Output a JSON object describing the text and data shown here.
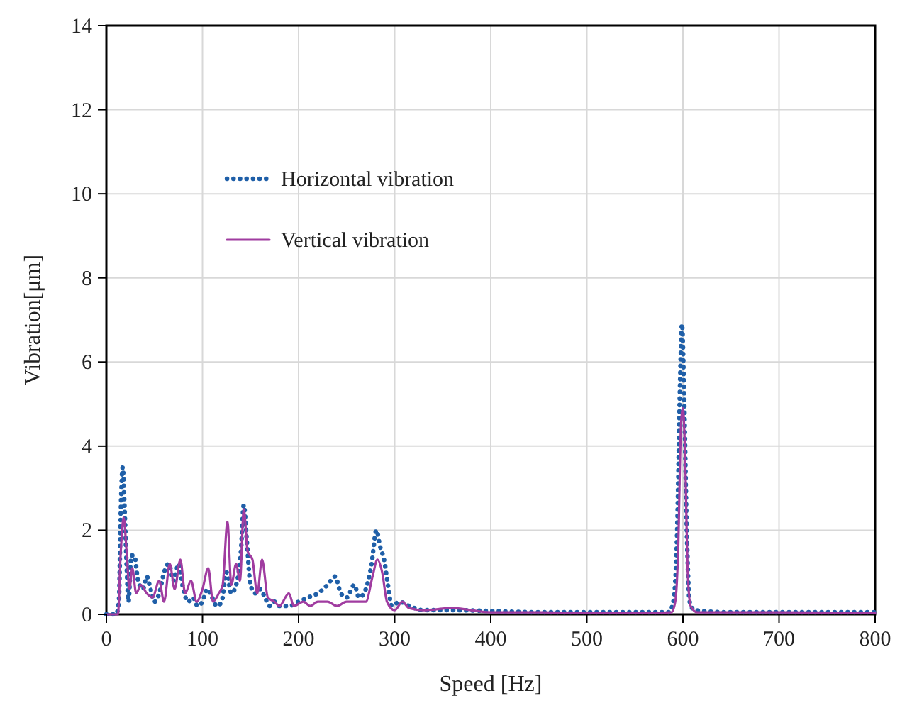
{
  "chart_data": {
    "type": "line",
    "xlabel": "Speed [Hz]",
    "ylabel": "Vibration[μm]",
    "xlim": [
      0,
      800
    ],
    "xticks": [
      0,
      100,
      200,
      300,
      400,
      500,
      600,
      700,
      800
    ],
    "ylim": [
      0,
      14
    ],
    "yticks": [
      0,
      2,
      4,
      6,
      8,
      10,
      12,
      14
    ],
    "grid": true,
    "legend": "top left",
    "series": [
      {
        "name": "Horizontal vibration",
        "color": "#1f5fa8",
        "line_style": "dotted",
        "x": [
          0,
          10,
          13,
          15,
          17,
          19,
          21,
          23,
          26,
          29,
          33,
          38,
          42,
          46,
          50,
          55,
          60,
          65,
          70,
          75,
          80,
          85,
          90,
          95,
          100,
          105,
          110,
          115,
          120,
          125,
          130,
          135,
          140,
          143,
          146,
          150,
          155,
          160,
          165,
          170,
          175,
          180,
          190,
          200,
          210,
          220,
          230,
          238,
          244,
          250,
          258,
          263,
          270,
          276,
          281,
          285,
          289,
          293,
          297,
          305,
          315,
          330,
          360,
          400,
          450,
          500,
          550,
          585,
          590,
          594,
          597,
          599,
          601,
          604,
          607,
          612,
          650,
          700,
          750,
          800
        ],
        "values": [
          0,
          0,
          0.3,
          2.5,
          3.5,
          2.5,
          1.2,
          0.3,
          1.4,
          1.4,
          0.8,
          0.6,
          0.9,
          0.6,
          0.3,
          0.5,
          1.0,
          1.2,
          0.8,
          1.2,
          0.6,
          0.3,
          0.4,
          0.2,
          0.3,
          0.6,
          0.4,
          0.2,
          0.3,
          1.0,
          0.5,
          0.7,
          1.5,
          2.6,
          1.8,
          0.7,
          0.5,
          0.6,
          0.4,
          0.2,
          0.3,
          0.2,
          0.2,
          0.3,
          0.4,
          0.5,
          0.7,
          0.9,
          0.5,
          0.4,
          0.7,
          0.4,
          0.6,
          1.2,
          2.0,
          1.6,
          1.3,
          0.7,
          0.2,
          0.3,
          0.2,
          0.1,
          0.1,
          0.08,
          0.05,
          0.05,
          0.05,
          0.05,
          0.3,
          2,
          5.5,
          6.9,
          5.5,
          2,
          0.3,
          0.1,
          0.05,
          0.05,
          0.05,
          0.05
        ]
      },
      {
        "name": "Vertical vibration",
        "color": "#a03ca0",
        "line_style": "solid",
        "x": [
          0,
          12,
          15,
          18,
          21,
          24,
          27,
          31,
          36,
          42,
          48,
          55,
          60,
          66,
          71,
          77,
          82,
          88,
          94,
          100,
          106,
          111,
          117,
          121,
          126,
          130,
          135,
          139,
          143,
          147,
          152,
          157,
          162,
          168,
          175,
          180,
          190,
          195,
          205,
          212,
          220,
          230,
          240,
          250,
          260,
          270,
          277,
          282,
          287,
          292,
          300,
          308,
          315,
          330,
          360,
          400,
          450,
          500,
          550,
          588,
          592,
          595,
          598,
          600,
          602,
          605,
          608,
          615,
          700,
          800
        ],
        "values": [
          0,
          0,
          1.5,
          2.3,
          1.5,
          0.6,
          1.1,
          0.5,
          0.7,
          0.5,
          0.4,
          0.8,
          0.3,
          1.2,
          0.6,
          1.3,
          0.5,
          0.8,
          0.3,
          0.6,
          1.1,
          0.3,
          0.5,
          0.7,
          2.2,
          0.7,
          1.2,
          0.8,
          2.5,
          1.5,
          1.3,
          0.5,
          1.3,
          0.4,
          0.3,
          0.2,
          0.5,
          0.2,
          0.3,
          0.2,
          0.3,
          0.3,
          0.2,
          0.3,
          0.3,
          0.3,
          0.9,
          1.3,
          1.0,
          0.3,
          0.1,
          0.3,
          0.15,
          0.1,
          0.15,
          0.05,
          0.05,
          0.03,
          0.03,
          0.05,
          0.3,
          1.5,
          4.5,
          4.9,
          4,
          1,
          0.2,
          0.05,
          0.05,
          0.03
        ]
      }
    ]
  }
}
